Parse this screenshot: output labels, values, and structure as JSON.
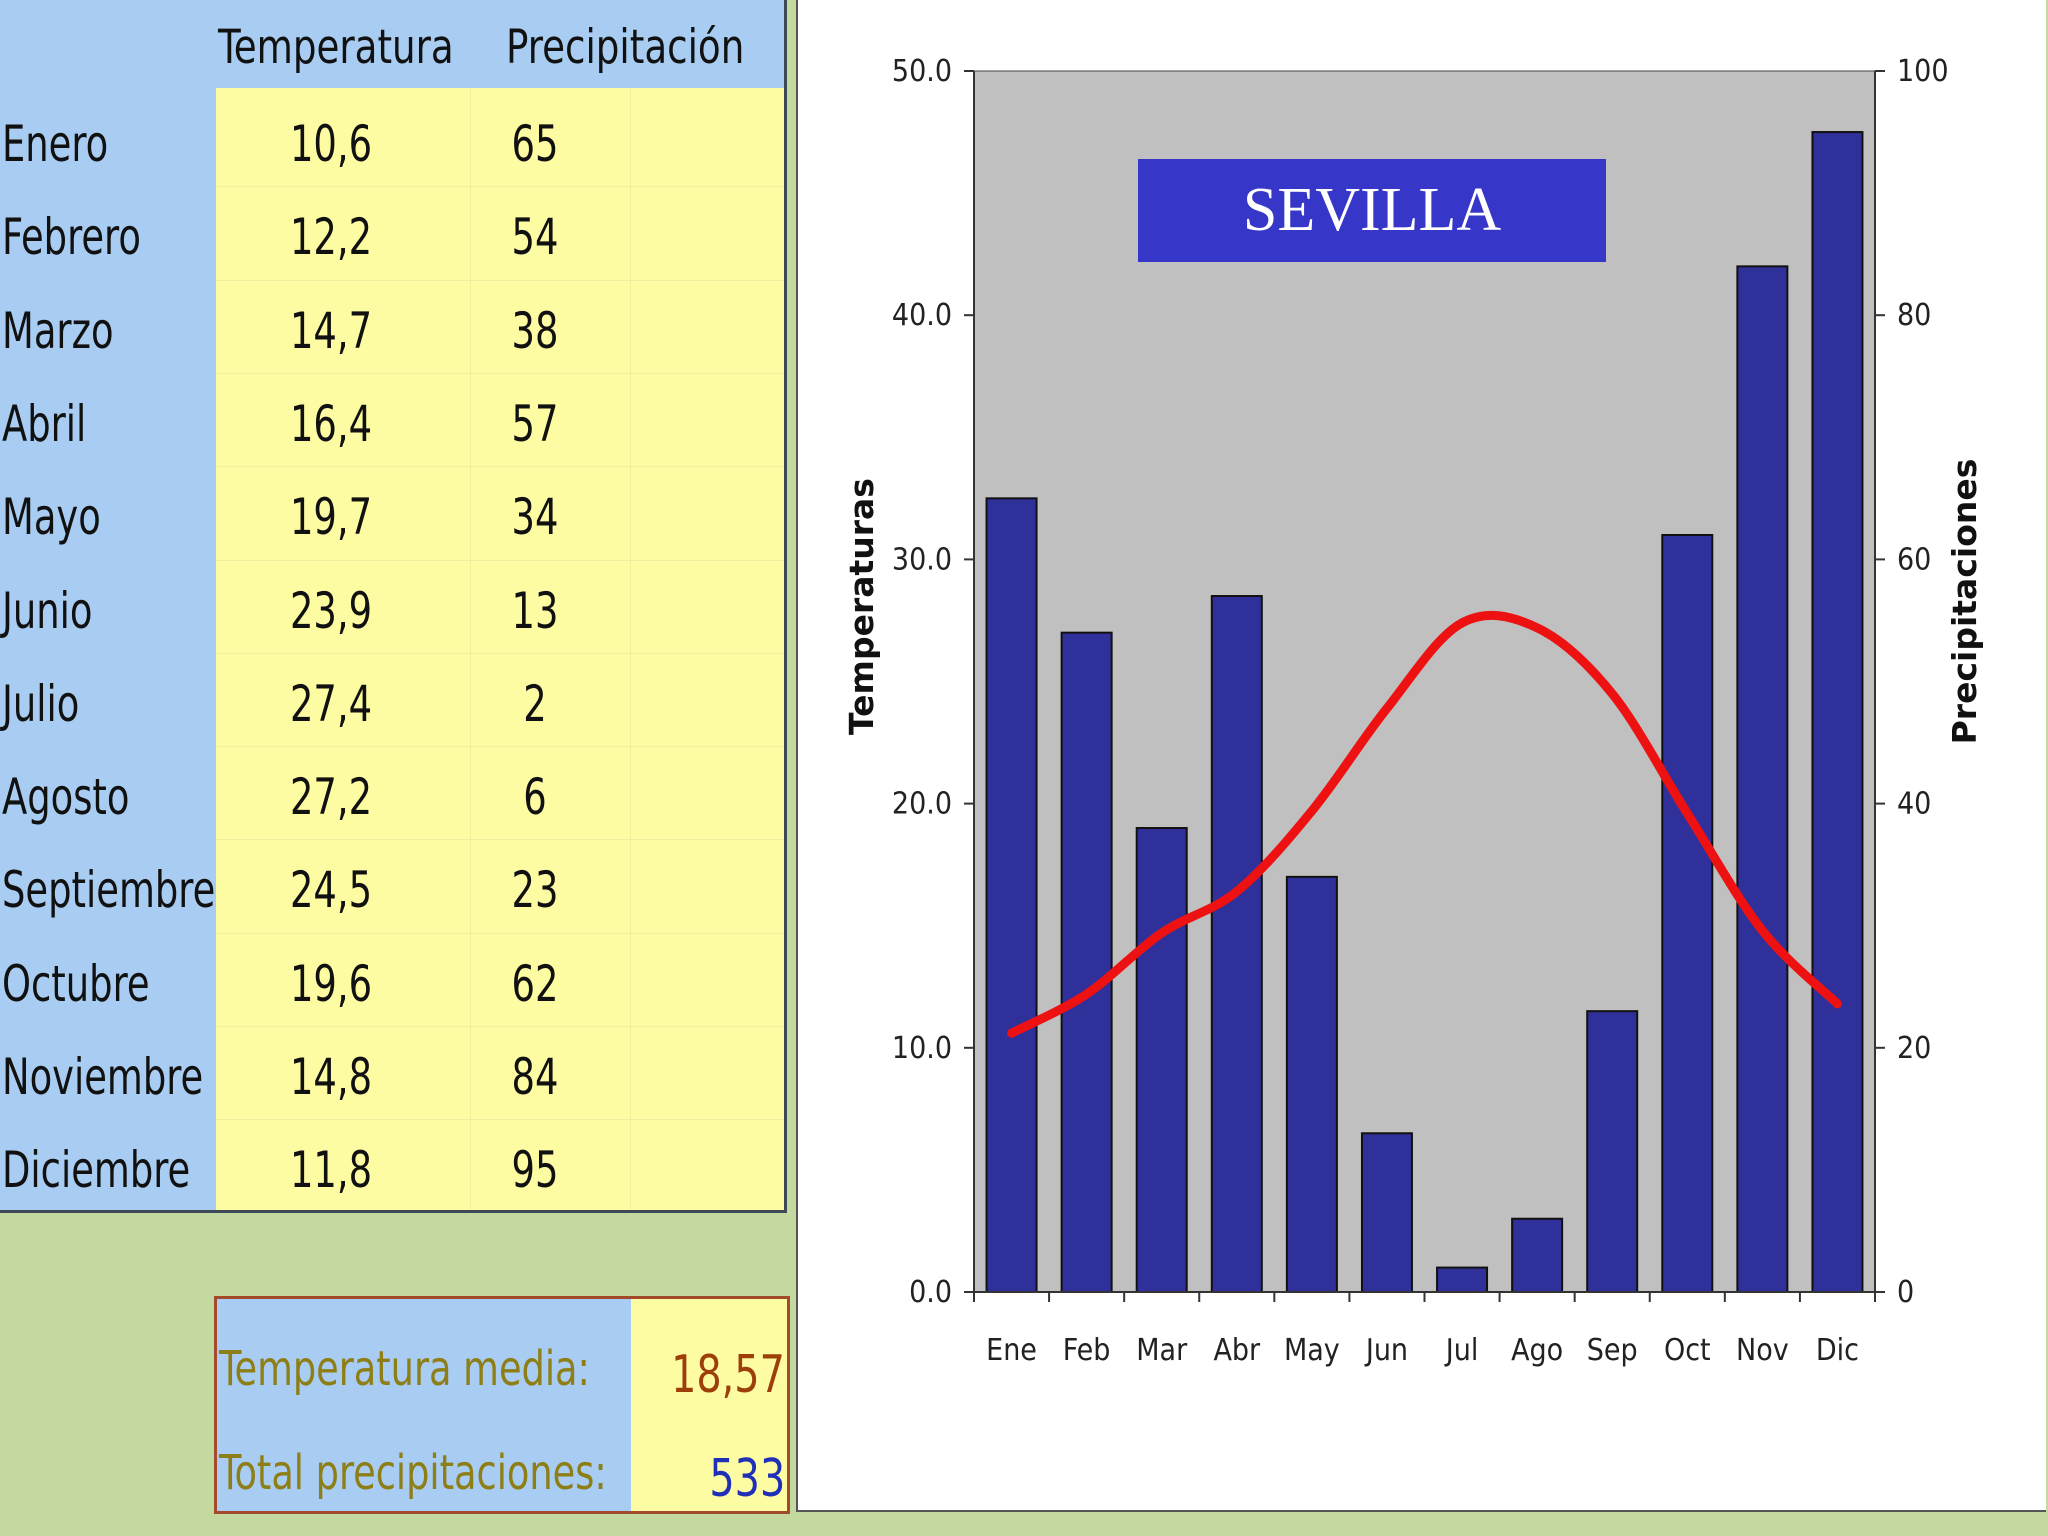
{
  "table": {
    "header_temp": "Temperatura",
    "header_precip": "Precipitación",
    "rows": [
      {
        "month": "Enero",
        "temp": "10,6",
        "precip": "65"
      },
      {
        "month": "Febrero",
        "temp": "12,2",
        "precip": "54"
      },
      {
        "month": "Marzo",
        "temp": "14,7",
        "precip": "38"
      },
      {
        "month": "Abril",
        "temp": "16,4",
        "precip": "57"
      },
      {
        "month": "Mayo",
        "temp": "19,7",
        "precip": "34"
      },
      {
        "month": "Junio",
        "temp": "23,9",
        "precip": "13"
      },
      {
        "month": "Julio",
        "temp": "27,4",
        "precip": "2"
      },
      {
        "month": "Agosto",
        "temp": "27,2",
        "precip": "6"
      },
      {
        "month": "Septiembre",
        "temp": "24,5",
        "precip": "23"
      },
      {
        "month": "Octubre",
        "temp": "19,6",
        "precip": "62"
      },
      {
        "month": "Noviembre",
        "temp": "14,8",
        "precip": "84"
      },
      {
        "month": "Diciembre",
        "temp": "11,8",
        "precip": "95"
      }
    ]
  },
  "summary": {
    "temp_label": "Temperatura media:",
    "temp_value": "18,57",
    "precip_label": "Total precipitaciones:",
    "precip_value": "533"
  },
  "colors": {
    "bar": "#30309a",
    "line": "#ee1111",
    "plot_bg": "#c0c0c0",
    "title_bg": "#3636c8"
  },
  "chart_data": {
    "type": "bar+line",
    "title": "SEVILLA",
    "categories": [
      "Ene",
      "Feb",
      "Mar",
      "Abr",
      "May",
      "Jun",
      "Jul",
      "Ago",
      "Sep",
      "Oct",
      "Nov",
      "Dic"
    ],
    "series": [
      {
        "type": "bar",
        "axis": "right",
        "values": [
          65,
          54,
          38,
          57,
          34,
          13,
          2,
          6,
          23,
          62,
          84,
          95
        ]
      },
      {
        "type": "line",
        "axis": "left",
        "values": [
          10.6,
          12.2,
          14.7,
          16.4,
          19.7,
          23.9,
          27.4,
          27.2,
          24.5,
          19.6,
          14.8,
          11.8
        ]
      }
    ],
    "ylabel": "Temperaturas",
    "y2label": "Precipitaciones",
    "ylim": [
      0,
      50
    ],
    "y2lim": [
      0,
      100
    ],
    "yticks": [
      "0.0",
      "10.0",
      "20.0",
      "30.0",
      "40.0",
      "50.0"
    ],
    "y2ticks": [
      "0",
      "20",
      "40",
      "60",
      "80",
      "100"
    ],
    "grid": false,
    "legend": "none"
  }
}
